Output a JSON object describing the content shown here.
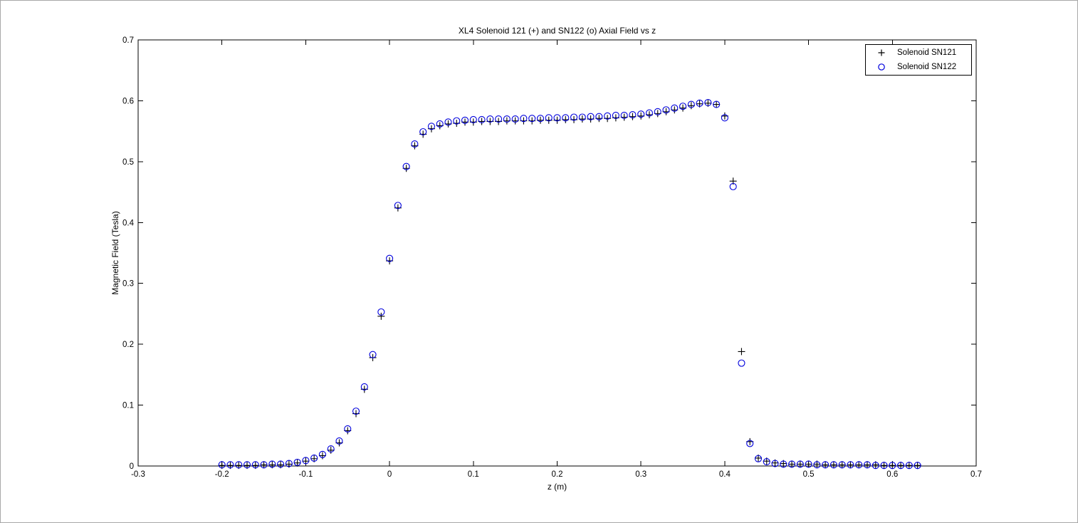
{
  "figure": {
    "title": "XL4 Solenoid 121 (+) and SN122 (o) Axial Field vs z",
    "xlabel": "z (m)",
    "ylabel": "Magnetic Field (Tesla)"
  },
  "legend": {
    "items": [
      {
        "marker": "plus",
        "label": "Solenoid SN121",
        "color": "#000000"
      },
      {
        "marker": "circle",
        "label": "Solenoid SN122",
        "color": "#0000dd"
      }
    ]
  },
  "chart_data": {
    "type": "scatter",
    "title": "XL4 Solenoid 121 (+) and SN122 (o) Axial Field vs z",
    "xlabel": "z (m)",
    "ylabel": "Magnetic Field (Tesla)",
    "xlim": [
      -0.3,
      0.7
    ],
    "ylim": [
      0,
      0.7
    ],
    "grid": false,
    "legend_position": "top-right",
    "xticks": [
      -0.3,
      -0.2,
      -0.1,
      0,
      0.1,
      0.2,
      0.3,
      0.4,
      0.5,
      0.6,
      0.7
    ],
    "xtick_labels": [
      "-0.3",
      "-0.2",
      "-0.1",
      "0",
      "0.1",
      "0.2",
      "0.3",
      "0.4",
      "0.5",
      "0.6",
      "0.7"
    ],
    "yticks": [
      0,
      0.1,
      0.2,
      0.3,
      0.4,
      0.5,
      0.6,
      0.7
    ],
    "ytick_labels": [
      "0",
      "0.1",
      "0.2",
      "0.3",
      "0.4",
      "0.5",
      "0.6",
      "0.7"
    ],
    "x": [
      -0.2,
      -0.19,
      -0.18,
      -0.17,
      -0.16,
      -0.15,
      -0.14,
      -0.13,
      -0.12,
      -0.11,
      -0.1,
      -0.09,
      -0.08,
      -0.07,
      -0.06,
      -0.05,
      -0.04,
      -0.03,
      -0.02,
      -0.01,
      0,
      0.01,
      0.02,
      0.03,
      0.04,
      0.05,
      0.06,
      0.07,
      0.08,
      0.09,
      0.1,
      0.11,
      0.12,
      0.13,
      0.14,
      0.15,
      0.16,
      0.17,
      0.18,
      0.19,
      0.2,
      0.21,
      0.22,
      0.23,
      0.24,
      0.25,
      0.26,
      0.27,
      0.28,
      0.29,
      0.3,
      0.31,
      0.32,
      0.33,
      0.34,
      0.35,
      0.36,
      0.37,
      0.38,
      0.39,
      0.4,
      0.41,
      0.42,
      0.43,
      0.44,
      0.45,
      0.46,
      0.47,
      0.48,
      0.49,
      0.5,
      0.51,
      0.52,
      0.53,
      0.54,
      0.55,
      0.56,
      0.57,
      0.58,
      0.59,
      0.6,
      0.61,
      0.62,
      0.63
    ],
    "series": [
      {
        "name": "Solenoid SN121",
        "marker": "+",
        "color": "#000000",
        "values": [
          0.001,
          0.001,
          0.001,
          0.001,
          0.001,
          0.002,
          0.002,
          0.002,
          0.003,
          0.005,
          0.008,
          0.012,
          0.017,
          0.026,
          0.038,
          0.058,
          0.086,
          0.126,
          0.178,
          0.246,
          0.337,
          0.424,
          0.489,
          0.526,
          0.545,
          0.554,
          0.559,
          0.562,
          0.563,
          0.565,
          0.565,
          0.566,
          0.566,
          0.566,
          0.567,
          0.567,
          0.567,
          0.567,
          0.568,
          0.568,
          0.568,
          0.569,
          0.569,
          0.57,
          0.57,
          0.571,
          0.571,
          0.572,
          0.573,
          0.574,
          0.575,
          0.577,
          0.579,
          0.582,
          0.585,
          0.588,
          0.592,
          0.595,
          0.596,
          0.594,
          0.575,
          0.468,
          0.188,
          0.04,
          0.013,
          0.008,
          0.005,
          0.004,
          0.003,
          0.003,
          0.003,
          0.003,
          0.002,
          0.002,
          0.002,
          0.002,
          0.002,
          0.002,
          0.002,
          0.001,
          0.001,
          0.001,
          0.001,
          0.001
        ]
      },
      {
        "name": "Solenoid SN122",
        "marker": "o",
        "color": "#0000dd",
        "values": [
          0.002,
          0.002,
          0.002,
          0.002,
          0.002,
          0.002,
          0.003,
          0.003,
          0.004,
          0.006,
          0.009,
          0.013,
          0.019,
          0.028,
          0.041,
          0.061,
          0.09,
          0.13,
          0.183,
          0.253,
          0.341,
          0.428,
          0.492,
          0.529,
          0.549,
          0.558,
          0.562,
          0.565,
          0.567,
          0.568,
          0.569,
          0.569,
          0.57,
          0.57,
          0.57,
          0.57,
          0.571,
          0.571,
          0.571,
          0.572,
          0.572,
          0.572,
          0.573,
          0.573,
          0.574,
          0.574,
          0.575,
          0.576,
          0.576,
          0.577,
          0.578,
          0.58,
          0.582,
          0.585,
          0.588,
          0.591,
          0.594,
          0.596,
          0.597,
          0.594,
          0.572,
          0.459,
          0.169,
          0.037,
          0.012,
          0.007,
          0.004,
          0.003,
          0.003,
          0.003,
          0.003,
          0.002,
          0.002,
          0.002,
          0.002,
          0.002,
          0.002,
          0.002,
          0.001,
          0.001,
          0.001,
          0.001,
          0.001,
          0.001
        ]
      }
    ]
  }
}
